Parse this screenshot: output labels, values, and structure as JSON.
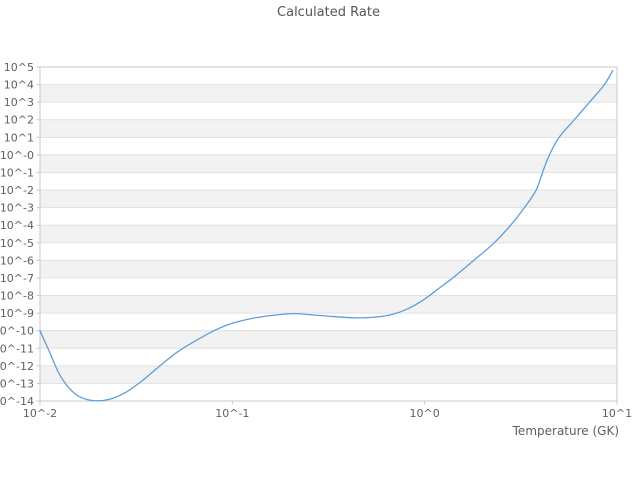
{
  "title": "Calculated Rate",
  "x_axis": {
    "label": "Temperature (GK)",
    "tick_labels": [
      "10^-2",
      "10^-1",
      "10^0",
      "10^1"
    ],
    "tick_log_values": [
      -2,
      -1,
      0,
      1
    ],
    "log_range": [
      -2,
      1
    ]
  },
  "y_axis": {
    "tick_labels": [
      "10^5",
      "10^4",
      "10^3",
      "10^2",
      "10^1",
      "10^-0",
      "10^-1",
      "10^-2",
      "10^-3",
      "10^-4",
      "10^-5",
      "10^-6",
      "10^-7",
      "10^-8",
      "10^-9",
      "10^-10",
      "10^-11",
      "10^-12",
      "10^-13",
      "10^-14"
    ],
    "tick_log_values": [
      5,
      4,
      3,
      2,
      1,
      0,
      -1,
      -2,
      -3,
      -4,
      -5,
      -6,
      -7,
      -8,
      -9,
      -10,
      -11,
      -12,
      -13,
      -14
    ],
    "log_range": [
      -14,
      5
    ]
  },
  "colors": {
    "line": "#5f9dd8",
    "band": "#f2f2f2",
    "grid": "#e1e1e1",
    "border": "#c8c8c8",
    "tick_text": "#606060",
    "title_text": "#565656",
    "background": "#ffffff"
  },
  "chart_data": {
    "type": "line",
    "title": "Calculated Rate",
    "xlabel": "Temperature (GK)",
    "ylabel": "",
    "x_scale": "log",
    "y_scale": "log",
    "xlim": [
      0.01,
      10
    ],
    "ylim_log10": [
      -14,
      5
    ],
    "grid": "on",
    "legend": "none",
    "series": [
      {
        "name": "Calculated Rate",
        "points_T_log10rate": [
          [
            0.01,
            -10.0
          ],
          [
            0.0113,
            -11.3
          ],
          [
            0.0125,
            -12.4
          ],
          [
            0.014,
            -13.2
          ],
          [
            0.016,
            -13.75
          ],
          [
            0.019,
            -13.98
          ],
          [
            0.023,
            -13.9
          ],
          [
            0.028,
            -13.5
          ],
          [
            0.034,
            -12.85
          ],
          [
            0.042,
            -12.0
          ],
          [
            0.052,
            -11.2
          ],
          [
            0.065,
            -10.55
          ],
          [
            0.082,
            -9.95
          ],
          [
            0.1,
            -9.58
          ],
          [
            0.13,
            -9.28
          ],
          [
            0.17,
            -9.1
          ],
          [
            0.21,
            -9.03
          ],
          [
            0.26,
            -9.1
          ],
          [
            0.33,
            -9.19
          ],
          [
            0.44,
            -9.27
          ],
          [
            0.55,
            -9.23
          ],
          [
            0.68,
            -9.07
          ],
          [
            0.82,
            -8.75
          ],
          [
            1.0,
            -8.2
          ],
          [
            1.2,
            -7.55
          ],
          [
            1.4,
            -7.0
          ],
          [
            1.8,
            -6.0
          ],
          [
            2.3,
            -5.0
          ],
          [
            2.8,
            -4.0
          ],
          [
            3.3,
            -3.0
          ],
          [
            3.8,
            -2.0
          ],
          [
            4.1,
            -1.0
          ],
          [
            4.45,
            0.0
          ],
          [
            5.0,
            1.0
          ],
          [
            6.0,
            2.0
          ],
          [
            7.2,
            3.0
          ],
          [
            8.6,
            4.0
          ],
          [
            9.5,
            4.8
          ]
        ]
      }
    ]
  }
}
